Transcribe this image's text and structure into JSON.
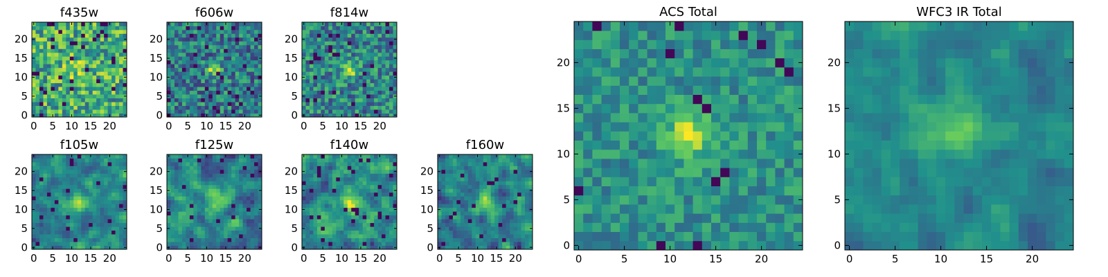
{
  "chart_data": {
    "type": "heatmap",
    "colormap": "viridis",
    "colormap_stops": [
      "#440154",
      "#3b528b",
      "#21918c",
      "#5ec962",
      "#fde725"
    ],
    "grid_size": 25,
    "panels": [
      {
        "title": "f435w",
        "xticks": [
          0,
          5,
          10,
          15,
          20
        ],
        "yticks": [
          0,
          5,
          10,
          15,
          20
        ],
        "xlim": [
          -0.5,
          24.5
        ],
        "ylim": [
          -0.5,
          24.5
        ],
        "model": {
          "peak": [
            12,
            12
          ],
          "peak_amp": 0.12,
          "peak_sigma": 3.0,
          "base": 0.62,
          "noise": 0.3,
          "lowpix": 0.06,
          "seed": 11,
          "smooth": 0
        }
      },
      {
        "title": "f606w",
        "xticks": [
          0,
          5,
          10,
          15,
          20
        ],
        "yticks": [
          0,
          5,
          10,
          15,
          20
        ],
        "xlim": [
          -0.5,
          24.5
        ],
        "ylim": [
          -0.5,
          24.5
        ],
        "model": {
          "peak": [
            12,
            12
          ],
          "peak_amp": 0.45,
          "peak_sigma": 1.3,
          "base": 0.42,
          "noise": 0.26,
          "lowpix": 0.05,
          "seed": 23,
          "smooth": 0
        }
      },
      {
        "title": "f814w",
        "xticks": [
          0,
          5,
          10,
          15,
          20
        ],
        "yticks": [
          0,
          5,
          10,
          15,
          20
        ],
        "xlim": [
          -0.5,
          24.5
        ],
        "ylim": [
          -0.5,
          24.5
        ],
        "model": {
          "peak": [
            12,
            12
          ],
          "peak_amp": 0.45,
          "peak_sigma": 1.4,
          "base": 0.46,
          "noise": 0.26,
          "lowpix": 0.05,
          "seed": 37,
          "smooth": 0
        }
      },
      {
        "title": "f105w",
        "xticks": [
          0,
          5,
          10,
          15,
          20
        ],
        "yticks": [
          0,
          5,
          10,
          15,
          20
        ],
        "xlim": [
          -0.5,
          24.5
        ],
        "ylim": [
          -0.5,
          24.5
        ],
        "model": {
          "peak": [
            12,
            12
          ],
          "peak_amp": 0.35,
          "peak_sigma": 2.2,
          "base": 0.45,
          "noise": 0.26,
          "lowpix": 0.04,
          "seed": 41,
          "smooth": 1
        }
      },
      {
        "title": "f125w",
        "xticks": [
          0,
          5,
          10,
          15,
          20
        ],
        "yticks": [
          0,
          5,
          10,
          15,
          20
        ],
        "xlim": [
          -0.5,
          24.5
        ],
        "ylim": [
          -0.5,
          24.5
        ],
        "model": {
          "peak": [
            13,
            12
          ],
          "peak_amp": 0.35,
          "peak_sigma": 2.0,
          "base": 0.45,
          "noise": 0.28,
          "lowpix": 0.04,
          "seed": 53,
          "smooth": 1
        }
      },
      {
        "title": "f140w",
        "xticks": [
          0,
          5,
          10,
          15,
          20
        ],
        "yticks": [
          0,
          5,
          10,
          15,
          20
        ],
        "xlim": [
          -0.5,
          24.5
        ],
        "ylim": [
          -0.5,
          24.5
        ],
        "model": {
          "peak": [
            12,
            12
          ],
          "peak_amp": 0.3,
          "peak_sigma": 2.2,
          "base": 0.5,
          "noise": 0.3,
          "lowpix": 0.04,
          "seed": 67,
          "smooth": 1
        }
      },
      {
        "title": "f160w",
        "xticks": [
          0,
          5,
          10,
          15,
          20
        ],
        "yticks": [
          0,
          5,
          10,
          15,
          20
        ],
        "xlim": [
          -0.5,
          24.5
        ],
        "ylim": [
          -0.5,
          24.5
        ],
        "model": {
          "peak": [
            12,
            12
          ],
          "peak_amp": 0.38,
          "peak_sigma": 2.0,
          "base": 0.45,
          "noise": 0.28,
          "lowpix": 0.04,
          "seed": 79,
          "smooth": 1
        }
      },
      {
        "title": "ACS Total",
        "xticks": [
          0,
          5,
          10,
          15,
          20
        ],
        "yticks": [
          0,
          5,
          10,
          15,
          20
        ],
        "xlim": [
          -0.5,
          24.5
        ],
        "ylim": [
          -0.5,
          24.5
        ],
        "model": {
          "peak": [
            12,
            12
          ],
          "peak_amp": 0.45,
          "peak_sigma": 1.7,
          "base": 0.5,
          "noise": 0.16,
          "lowpix": 0.03,
          "seed": 97,
          "smooth": 0
        }
      },
      {
        "title": "WFC3 IR Total",
        "xticks": [
          0,
          5,
          10,
          15,
          20
        ],
        "yticks": [
          0,
          5,
          10,
          15,
          20
        ],
        "xlim": [
          -0.5,
          24.5
        ],
        "ylim": [
          -0.5,
          24.5
        ],
        "model": {
          "peak": [
            12,
            13
          ],
          "peak_amp": 0.32,
          "peak_sigma": 2.4,
          "base": 0.45,
          "noise": 0.16,
          "lowpix": 0.0,
          "seed": 131,
          "smooth": 1
        }
      }
    ]
  }
}
